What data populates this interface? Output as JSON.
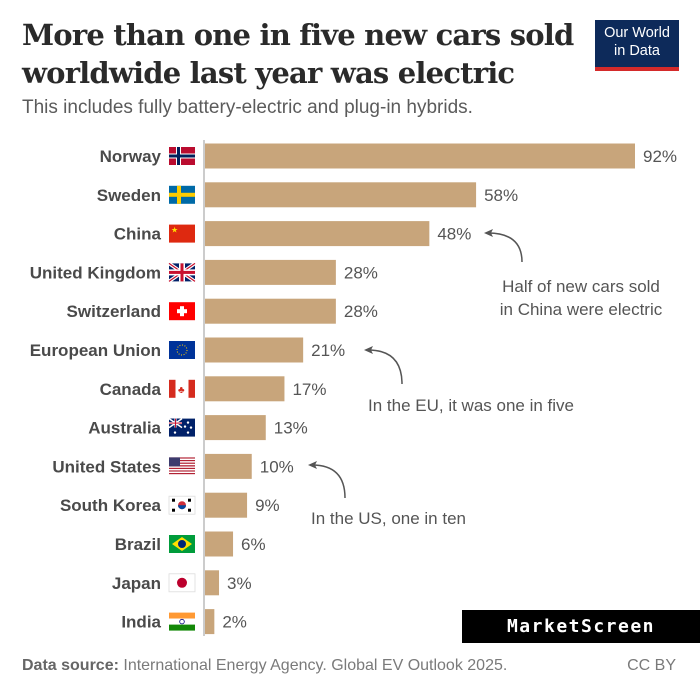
{
  "header": {
    "title": "More than one in five new cars sold worldwide last year was electric",
    "subtitle": "This includes fully battery-electric and plug-in hybrids.",
    "logo_line1": "Our World",
    "logo_line2": "in Data"
  },
  "watermark": "MarketScreen",
  "footer": {
    "source_label": "Data source:",
    "source_text": " International Energy Agency. Global EV Outlook 2025.",
    "license": "CC BY"
  },
  "colors": {
    "bar": "#c8a57b",
    "text": "#4a4a4a",
    "annotation": "#555555"
  },
  "chart_data": {
    "type": "bar",
    "orientation": "horizontal",
    "title": "More than one in five new cars sold worldwide last year was electric",
    "subtitle": "This includes fully battery-electric and plug-in hybrids.",
    "xlabel": "",
    "ylabel": "",
    "xlim": [
      0,
      100
    ],
    "grid": false,
    "unit": "%",
    "categories": [
      "Norway",
      "Sweden",
      "China",
      "United Kingdom",
      "Switzerland",
      "European Union",
      "Canada",
      "Australia",
      "United States",
      "South Korea",
      "Brazil",
      "Japan",
      "India"
    ],
    "flags": [
      "flag-norway",
      "flag-sweden",
      "flag-china",
      "flag-uk",
      "flag-switzerland",
      "flag-eu",
      "flag-canada",
      "flag-australia",
      "flag-us",
      "flag-south-korea",
      "flag-brazil",
      "flag-japan",
      "flag-india"
    ],
    "values": [
      92,
      58,
      48,
      28,
      28,
      21,
      17,
      13,
      10,
      9,
      6,
      3,
      2
    ],
    "labels": [
      "92%",
      "58%",
      "48%",
      "28%",
      "28%",
      "21%",
      "17%",
      "13%",
      "10%",
      "9%",
      "6%",
      "3%",
      "2%"
    ],
    "annotations": [
      {
        "target": "China",
        "lines": [
          "Half of new cars sold",
          "in China were electric"
        ]
      },
      {
        "target": "European Union",
        "lines": [
          "In the EU, it was one in five"
        ]
      },
      {
        "target": "United States",
        "lines": [
          "In the US, one in ten"
        ]
      }
    ]
  }
}
